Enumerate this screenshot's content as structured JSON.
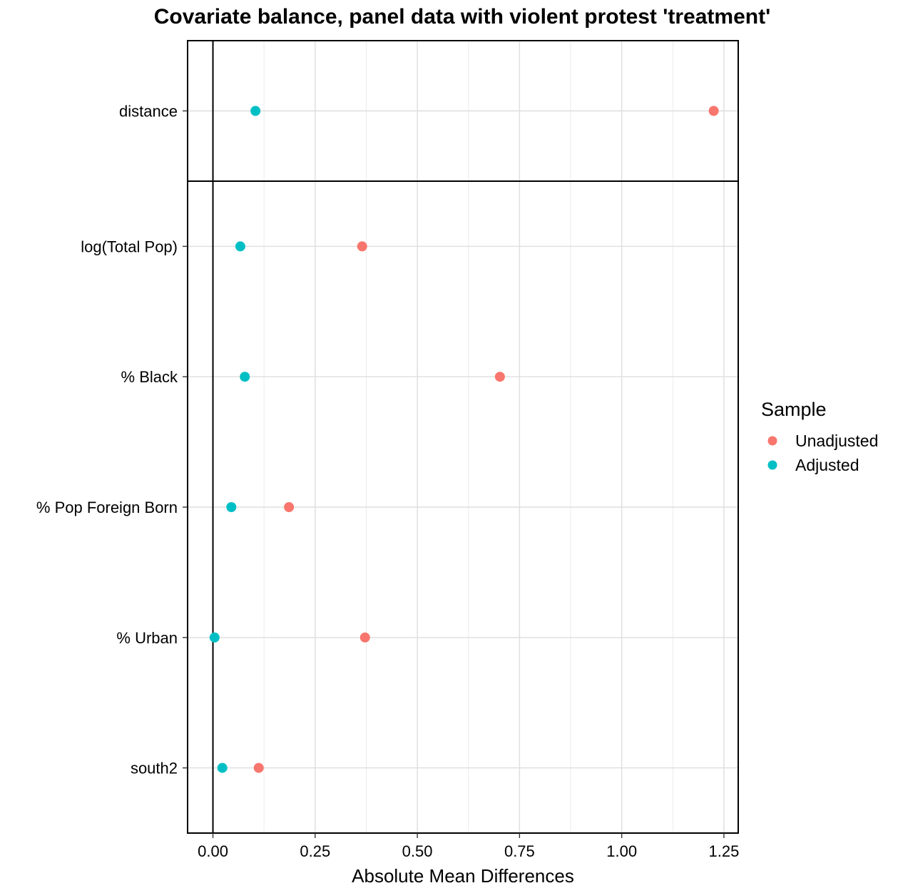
{
  "chart_data": {
    "type": "scatter",
    "title": "Covariate balance, panel data with violent protest 'treatment'",
    "xlabel": "Absolute Mean Differences",
    "ylabel": "",
    "xlim": [
      -0.062,
      1.285
    ],
    "x_ticks": [
      0.0,
      0.25,
      0.5,
      0.75,
      1.0,
      1.25
    ],
    "x_tick_labels": [
      "0.00",
      "0.25",
      "0.50",
      "0.75",
      "1.00",
      "1.25"
    ],
    "categories": [
      "distance",
      "log(Total Pop)",
      "% Black",
      "% Pop Foreign Born",
      "% Urban",
      "south2"
    ],
    "panels": [
      [
        "distance"
      ],
      [
        "log(Total Pop)",
        "% Black",
        "% Pop Foreign Born",
        "% Urban",
        "south2"
      ]
    ],
    "grid": true,
    "reference_line_x": 0,
    "legend": {
      "title": "Sample",
      "placement": "right"
    },
    "series": [
      {
        "name": "Unadjusted",
        "color": "#F8766D",
        "values": [
          1.225,
          0.365,
          0.702,
          0.186,
          0.372,
          0.112
        ]
      },
      {
        "name": "Adjusted",
        "color": "#00BFC4",
        "values": [
          0.104,
          0.067,
          0.078,
          0.045,
          0.004,
          0.023
        ]
      }
    ]
  }
}
